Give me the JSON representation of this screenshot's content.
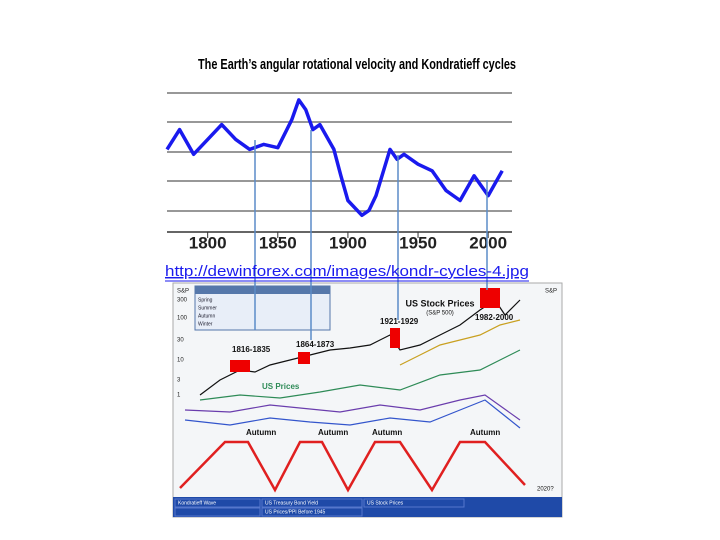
{
  "slide": {
    "title": "The Earth’s angular rotational velocity and Kondratieff cycles",
    "link": "http://dewinforex.com/images/kondr-cycles-4.jpg"
  },
  "chart_data": {
    "type": "line",
    "x": [
      1771,
      1780,
      1790,
      1800,
      1810,
      1820,
      1830,
      1840,
      1850,
      1860,
      1865,
      1870,
      1875,
      1880,
      1890,
      1895,
      1900,
      1910,
      1915,
      1920,
      1930,
      1935,
      1940,
      1950,
      1960,
      1970,
      1980,
      1990,
      2000,
      2010
    ],
    "series": [
      {
        "color": "#1a1aee",
        "values": [
          6.1,
          7.3,
          5.8,
          6.7,
          7.6,
          6.7,
          6.1,
          6.4,
          6.2,
          7.9,
          9.1,
          8.5,
          7.3,
          7.6,
          6.1,
          4.5,
          3.0,
          2.1,
          2.4,
          3.3,
          6.1,
          5.5,
          5.8,
          5.2,
          4.8,
          3.6,
          3.0,
          4.5,
          3.3,
          4.8
        ]
      }
    ],
    "xlim": [
      1771,
      2017
    ],
    "ylim": [
      0,
      10
    ],
    "xticks": [
      1800,
      1850,
      1900,
      1950,
      2000
    ]
  },
  "inset": {
    "labels": [
      "S&P",
      "300",
      "100",
      "30",
      "10",
      "3",
      "1",
      "S&P",
      "Spring",
      "Summer",
      "Autumn",
      "Winter",
      "US Stock Prices",
      "(S&P 500)",
      "1816-1835",
      "1864-1873",
      "1921-1929",
      "1982-2000",
      "US Prices",
      "Autumn",
      "Autumn",
      "Autumn",
      "Autumn",
      "2020?",
      "Kondratieff Wave",
      "US Treasury Bond Yield",
      "US Stock Prices",
      "US Prices/PPI Before 1945"
    ]
  }
}
